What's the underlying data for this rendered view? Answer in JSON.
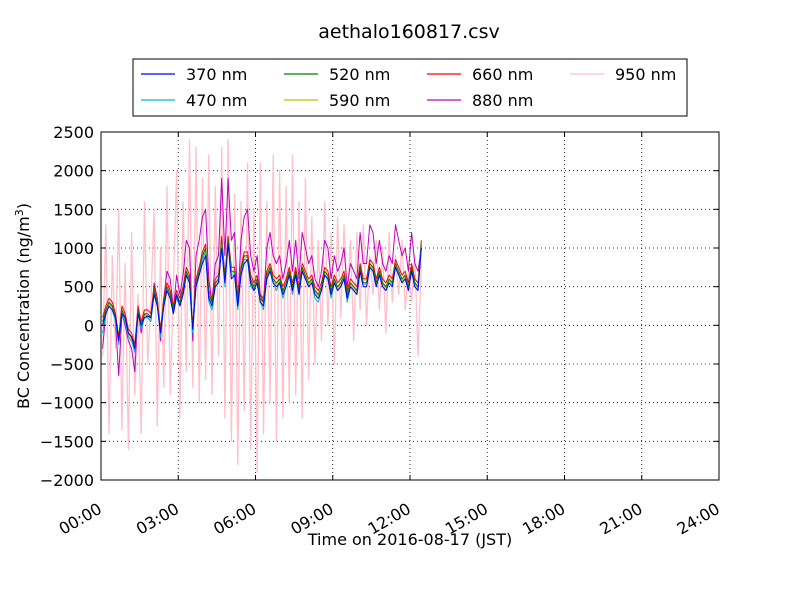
{
  "chart_data": {
    "type": "line",
    "title": "aethalo160817.csv",
    "xlabel": "Time on 2016-08-17 (JST)",
    "ylabel": "BC Concentration (ng/m³)",
    "xlim": [
      "00:00",
      "24:00"
    ],
    "ylim": [
      -2000,
      2500
    ],
    "x_ticks": [
      "00:00",
      "03:00",
      "06:00",
      "09:00",
      "12:00",
      "15:00",
      "18:00",
      "21:00",
      "24:00"
    ],
    "y_ticks": [
      -2000,
      -1500,
      -1000,
      -500,
      0,
      500,
      1000,
      1500,
      2000,
      2500
    ],
    "grid": true,
    "legend_position": "top",
    "x_step_hours": 0.125,
    "series": [
      {
        "name": "370 nm",
        "color": "#0000ff",
        "width": 1.0,
        "values": [
          0,
          150,
          250,
          200,
          100,
          -200,
          150,
          100,
          -100,
          -150,
          -300,
          150,
          0,
          100,
          120,
          100,
          400,
          250,
          -100,
          250,
          450,
          350,
          150,
          400,
          250,
          400,
          650,
          550,
          -50,
          500,
          650,
          800,
          900,
          350,
          250,
          500,
          550,
          1000,
          550,
          1050,
          600,
          650,
          250,
          650,
          800,
          850,
          550,
          450,
          550,
          300,
          250,
          600,
          700,
          550,
          500,
          550,
          400,
          500,
          650,
          450,
          650,
          400,
          700,
          600,
          500,
          550,
          400,
          350,
          450,
          650,
          600,
          400,
          550,
          450,
          500,
          600,
          350,
          500,
          450,
          400,
          700,
          500,
          500,
          750,
          700,
          500,
          650,
          500,
          450,
          550,
          500,
          750,
          650,
          550,
          600,
          450,
          700,
          500,
          450,
          1000
        ]
      },
      {
        "name": "470 nm",
        "color": "#00bfbf",
        "width": 1.0,
        "values": [
          -100,
          150,
          250,
          200,
          50,
          -250,
          150,
          50,
          -150,
          -200,
          -350,
          150,
          -50,
          100,
          100,
          50,
          400,
          250,
          -150,
          250,
          450,
          350,
          150,
          350,
          250,
          400,
          650,
          550,
          -100,
          500,
          650,
          850,
          950,
          300,
          200,
          500,
          550,
          1050,
          500,
          1050,
          650,
          650,
          200,
          650,
          850,
          850,
          500,
          450,
          550,
          300,
          200,
          600,
          700,
          550,
          450,
          550,
          350,
          500,
          650,
          400,
          650,
          400,
          700,
          600,
          500,
          550,
          350,
          300,
          450,
          650,
          600,
          350,
          550,
          450,
          500,
          600,
          300,
          500,
          450,
          400,
          700,
          500,
          500,
          750,
          700,
          500,
          650,
          500,
          450,
          550,
          500,
          750,
          650,
          550,
          600,
          450,
          700,
          500,
          450,
          1000
        ]
      },
      {
        "name": "520 nm",
        "color": "#008000",
        "width": 1.0,
        "values": [
          50,
          200,
          300,
          250,
          100,
          -200,
          200,
          100,
          -100,
          -150,
          -300,
          200,
          0,
          150,
          150,
          100,
          450,
          300,
          -100,
          300,
          500,
          400,
          200,
          400,
          300,
          450,
          700,
          600,
          -50,
          550,
          700,
          900,
          1000,
          400,
          300,
          550,
          600,
          1100,
          600,
          1100,
          700,
          700,
          300,
          700,
          900,
          900,
          600,
          500,
          600,
          350,
          300,
          650,
          750,
          600,
          550,
          600,
          450,
          550,
          700,
          500,
          700,
          450,
          750,
          650,
          550,
          600,
          450,
          400,
          500,
          700,
          650,
          450,
          600,
          500,
          550,
          650,
          400,
          550,
          500,
          450,
          750,
          550,
          550,
          800,
          750,
          550,
          700,
          550,
          500,
          600,
          550,
          800,
          700,
          600,
          650,
          500,
          750,
          550,
          500,
          1050
        ]
      },
      {
        "name": "590 nm",
        "color": "#bfbf00",
        "width": 1.0,
        "values": [
          0,
          180,
          280,
          230,
          80,
          -220,
          180,
          80,
          -120,
          -170,
          -320,
          180,
          -20,
          130,
          130,
          80,
          430,
          280,
          -120,
          280,
          480,
          380,
          180,
          380,
          280,
          430,
          680,
          580,
          -70,
          530,
          680,
          880,
          980,
          380,
          280,
          530,
          580,
          1080,
          580,
          1080,
          680,
          680,
          280,
          680,
          880,
          880,
          580,
          480,
          580,
          330,
          280,
          630,
          730,
          580,
          530,
          580,
          430,
          530,
          680,
          480,
          680,
          430,
          730,
          630,
          530,
          580,
          430,
          380,
          480,
          680,
          630,
          430,
          580,
          480,
          530,
          630,
          380,
          530,
          480,
          430,
          730,
          530,
          530,
          780,
          730,
          530,
          680,
          530,
          480,
          580,
          530,
          780,
          680,
          580,
          630,
          480,
          730,
          530,
          480,
          1030
        ]
      },
      {
        "name": "660 nm",
        "color": "#ff0000",
        "width": 1.0,
        "values": [
          100,
          250,
          350,
          300,
          150,
          -150,
          250,
          150,
          -50,
          -100,
          -250,
          250,
          50,
          200,
          200,
          150,
          500,
          350,
          -50,
          350,
          550,
          450,
          250,
          450,
          350,
          500,
          750,
          650,
          0,
          600,
          750,
          950,
          1050,
          450,
          350,
          600,
          650,
          1150,
          650,
          1150,
          750,
          750,
          350,
          750,
          950,
          950,
          650,
          550,
          650,
          400,
          350,
          700,
          800,
          650,
          600,
          650,
          500,
          600,
          750,
          550,
          750,
          500,
          800,
          700,
          600,
          650,
          500,
          450,
          550,
          750,
          700,
          500,
          650,
          550,
          600,
          700,
          450,
          600,
          550,
          500,
          800,
          600,
          600,
          850,
          800,
          600,
          750,
          600,
          550,
          650,
          600,
          850,
          750,
          650,
          700,
          550,
          800,
          600,
          550,
          1100
        ]
      },
      {
        "name": "880 nm",
        "color": "#bf00bf",
        "width": 1.0,
        "values": [
          -300,
          150,
          300,
          250,
          50,
          -650,
          150,
          0,
          -200,
          -300,
          -600,
          200,
          -100,
          150,
          100,
          50,
          550,
          350,
          -200,
          350,
          700,
          600,
          200,
          650,
          400,
          650,
          1100,
          1000,
          -200,
          900,
          1100,
          1400,
          1500,
          600,
          300,
          800,
          900,
          1900,
          900,
          1900,
          1100,
          1200,
          300,
          1100,
          1400,
          1500,
          900,
          700,
          900,
          400,
          300,
          1000,
          1200,
          900,
          800,
          900,
          600,
          800,
          1100,
          700,
          1100,
          600,
          1200,
          1000,
          800,
          900,
          600,
          500,
          700,
          1100,
          1000,
          600,
          900,
          700,
          800,
          1000,
          500,
          800,
          700,
          600,
          1200,
          800,
          800,
          1300,
          1200,
          800,
          1100,
          800,
          700,
          900,
          800,
          1300,
          1100,
          900,
          1000,
          700,
          1200,
          800,
          700,
          1000
        ]
      },
      {
        "name": "950 nm",
        "color": "#ffc0cb",
        "width": 1.3,
        "values": [
          -400,
          1300,
          -1400,
          900,
          -300,
          1500,
          -1350,
          800,
          -1600,
          1200,
          -900,
          400,
          -1400,
          1600,
          -500,
          300,
          1500,
          -1300,
          1000,
          -800,
          1800,
          -900,
          500,
          2000,
          -1200,
          1600,
          -600,
          2400,
          -800,
          2300,
          -1000,
          1900,
          -700,
          2200,
          -900,
          1800,
          -400,
          2300,
          -1200,
          2400,
          -1500,
          1700,
          -1800,
          1600,
          -1100,
          2100,
          -1600,
          1500,
          -1900,
          2100,
          -1400,
          1600,
          -1000,
          2200,
          -1500,
          2000,
          -1200,
          1800,
          -1000,
          2200,
          -900,
          1600,
          -1200,
          1900,
          -700,
          1400,
          -500,
          1100,
          -200,
          1600,
          0,
          1200,
          -500,
          1400,
          100,
          1300,
          300,
          1100,
          -200,
          1200,
          200,
          1300,
          0,
          900,
          400,
          1100,
          200,
          1000,
          -100,
          1200,
          300,
          900,
          400,
          1100,
          200,
          700,
          300,
          900,
          -400,
          800
        ]
      }
    ]
  }
}
